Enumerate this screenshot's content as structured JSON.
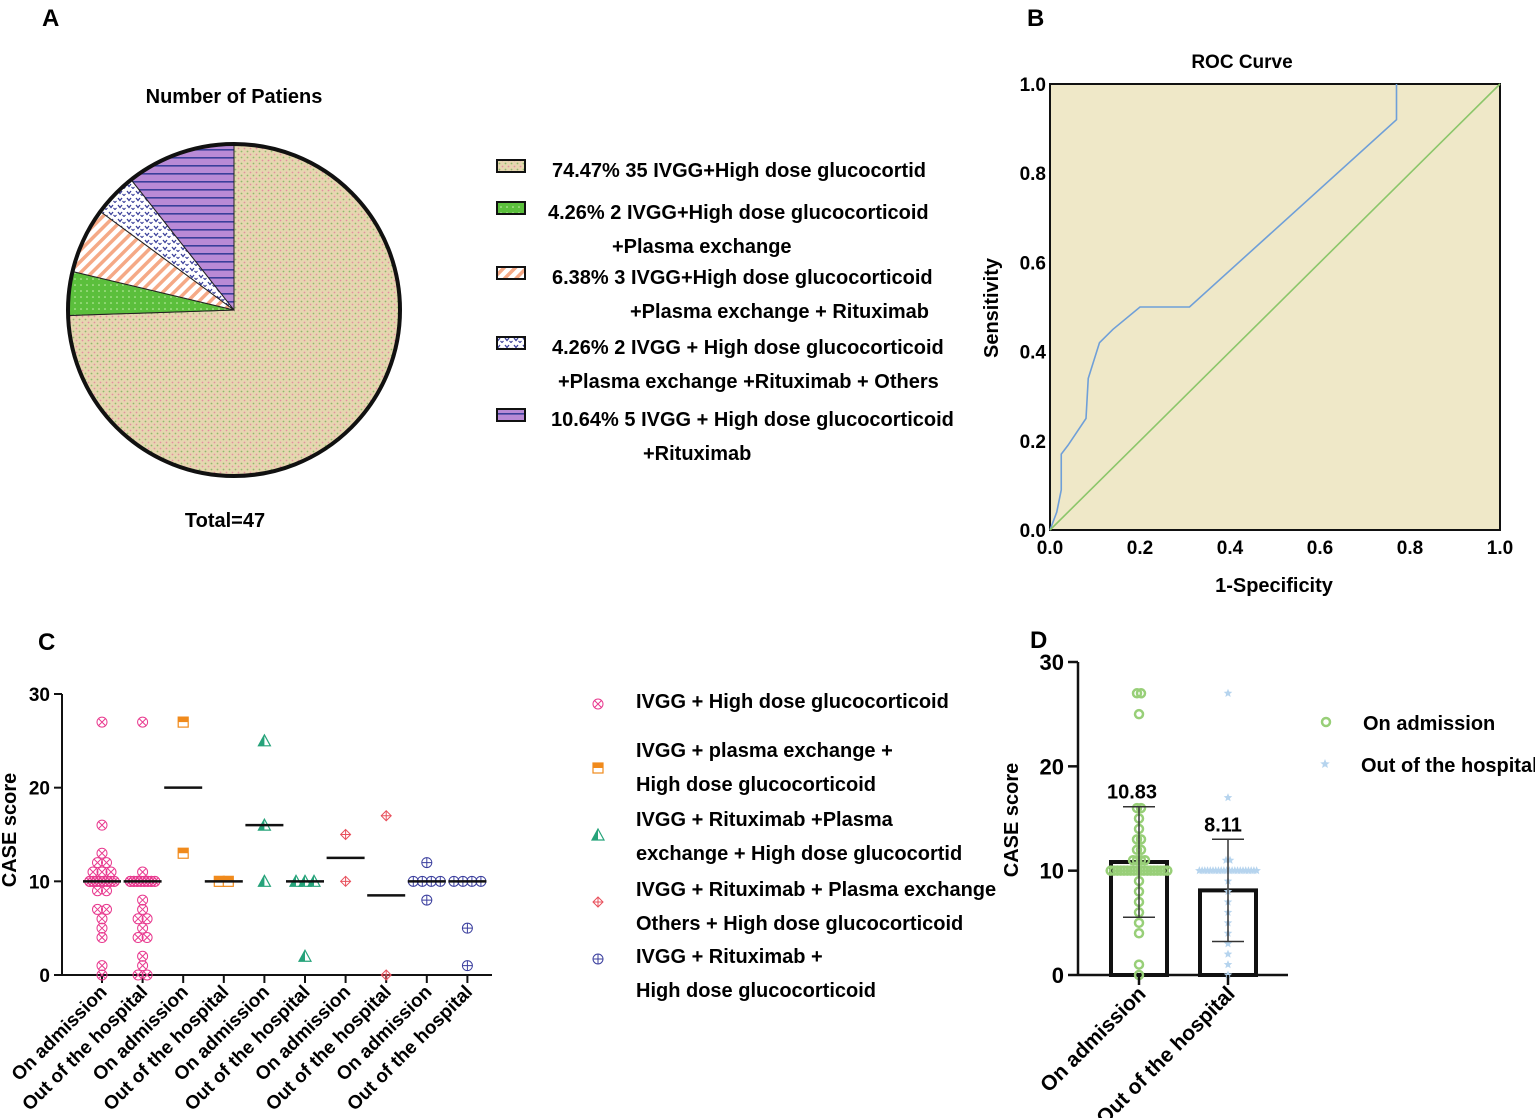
{
  "panel_labels": {
    "a": "A",
    "b": "B",
    "c": "C",
    "d": "D"
  },
  "colors": {
    "pie_base": "#e6d6b0",
    "pie_green": "#5bbf3c",
    "pie_salmon": "#f5a986",
    "pie_navy": "#3a3f9a",
    "pie_purple": "#b98ad6",
    "roc_bg": "#efe8c8",
    "roc_curve": "#6f9fd8",
    "roc_diag": "#8cc66a",
    "c_pink": "#e83a8f",
    "c_orange": "#f08a1c",
    "c_teal": "#26a37a",
    "c_red": "#e8505c",
    "c_navy": "#3b3f9e",
    "d_green": "#98cf78",
    "d_blue": "#b6d4ee"
  },
  "chart_data": [
    {
      "id": "A",
      "type": "pie",
      "title": "Number of Patiens",
      "footer": "Total=47",
      "slices": [
        {
          "percent": 74.47,
          "count": 35,
          "pattern": "dots",
          "color_key": "pie_base",
          "legend_lines": [
            "74.47% 35 IVGG+High dose glucocortid"
          ]
        },
        {
          "percent": 4.26,
          "count": 2,
          "pattern": "green",
          "color_key": "pie_green",
          "legend_lines": [
            "4.26% 2 IVGG+High dose glucocorticoid",
            "+Plasma exchange"
          ]
        },
        {
          "percent": 6.38,
          "count": 3,
          "pattern": "diag",
          "color_key": "pie_salmon",
          "legend_lines": [
            "6.38% 3 IVGG+High dose glucocorticoid",
            "+Plasma exchange + Rituximab"
          ]
        },
        {
          "percent": 4.26,
          "count": 2,
          "pattern": "chevron",
          "color_key": "pie_navy",
          "legend_lines": [
            "4.26% 2 IVGG + High dose glucocorticoid",
            "+Plasma exchange +Rituximab + Others"
          ]
        },
        {
          "percent": 10.64,
          "count": 5,
          "pattern": "hlines",
          "color_key": "pie_purple",
          "legend_lines": [
            "10.64% 5 IVGG + High dose glucocorticoid",
            "+Rituximab"
          ]
        }
      ]
    },
    {
      "id": "B",
      "type": "line",
      "title": "ROC Curve",
      "xlabel": "1-Specificity",
      "ylabel": "Sensitivity",
      "xlim": [
        0,
        1
      ],
      "ylim": [
        0,
        1
      ],
      "xticks": [
        "0.0",
        "0.2",
        "0.4",
        "0.6",
        "0.8",
        "1.0"
      ],
      "yticks": [
        "0.0",
        "0.2",
        "0.4",
        "0.6",
        "0.8",
        "1.0"
      ],
      "series": [
        {
          "name": "ROC",
          "color_key": "roc_curve",
          "x": [
            0,
            0.015,
            0.025,
            0.025,
            0.04,
            0.08,
            0.085,
            0.11,
            0.14,
            0.2,
            0.31,
            0.77,
            0.77
          ],
          "y": [
            0,
            0.04,
            0.09,
            0.17,
            0.19,
            0.25,
            0.34,
            0.42,
            0.45,
            0.5,
            0.5,
            0.92,
            1.0
          ]
        },
        {
          "name": "Reference",
          "color_key": "roc_diag",
          "x": [
            0,
            1
          ],
          "y": [
            0,
            1
          ]
        }
      ]
    },
    {
      "id": "C",
      "type": "scatter",
      "ylabel": "CASE score",
      "ylim": [
        0,
        30
      ],
      "yticks": [
        "0",
        "10",
        "20",
        "30"
      ],
      "categories": [
        "On admission",
        "Out of the hospital",
        "On admission",
        "Out of the hospital",
        "On admission",
        "Out of the hospital",
        "On admission",
        "Out of the hospital",
        "On admission",
        "Out of the hospital"
      ],
      "groups": [
        {
          "name": "IVGG + High dose glucocorticoid",
          "legend_lines": [
            "IVGG + High dose glucocorticoid"
          ],
          "marker": "circle-x",
          "color_key": "c_pink",
          "admission": [
            27,
            16,
            13,
            12,
            12,
            11,
            11,
            11,
            10,
            10,
            10,
            10,
            10,
            10,
            10,
            10,
            10,
            10,
            10,
            10,
            10,
            10,
            10,
            10,
            10,
            10,
            10,
            10,
            10,
            9,
            9,
            7,
            7,
            6,
            5,
            4,
            1,
            0
          ],
          "discharge": [
            27,
            11,
            10,
            10,
            10,
            10,
            10,
            10,
            10,
            10,
            10,
            10,
            10,
            10,
            10,
            10,
            10,
            10,
            10,
            10,
            10,
            10,
            10,
            10,
            10,
            8,
            7,
            6,
            6,
            5,
            4,
            4,
            2,
            1,
            0,
            0
          ],
          "mean_adm": 10,
          "mean_dis": 10
        },
        {
          "name": "IVGG + plasma exchange + High dose glucocorticoid",
          "legend_lines": [
            "IVGG + plasma exchange +",
            "High dose glucocorticoid"
          ],
          "marker": "half-square",
          "color_key": "c_orange",
          "admission": [
            27,
            13
          ],
          "discharge": [
            10,
            10
          ],
          "mean_adm": 20,
          "mean_dis": 10
        },
        {
          "name": "IVGG + Rituximab +Plasma exchange + High dose glucocortid",
          "legend_lines": [
            "IVGG + Rituximab +Plasma",
            "exchange + High dose glucocortid"
          ],
          "marker": "half-triangle",
          "color_key": "c_teal",
          "admission": [
            25,
            16,
            10
          ],
          "discharge": [
            10,
            10,
            10,
            2
          ],
          "mean_adm": 16,
          "mean_dis": 10
        },
        {
          "name": "IVGG + Rituximab + Plasma exchange Others + High dose glucocorticoid",
          "legend_lines": [
            "IVGG + Rituximab + Plasma exchange",
            "Others + High dose glucocorticoid"
          ],
          "marker": "diamond-plus",
          "color_key": "c_red",
          "admission": [
            15,
            10
          ],
          "discharge": [
            17,
            0
          ],
          "mean_adm": 12.5,
          "mean_dis": 8.5
        },
        {
          "name": "IVGG + Rituximab + High dose glucocorticoid",
          "legend_lines": [
            "IVGG + Rituximab +",
            "High dose glucocorticoid"
          ],
          "marker": "circle-plus",
          "color_key": "c_navy",
          "admission": [
            12,
            10,
            10,
            10,
            10,
            8
          ],
          "discharge": [
            10,
            10,
            10,
            10,
            5,
            1
          ],
          "mean_adm": 10,
          "mean_dis": 10
        }
      ]
    },
    {
      "id": "D",
      "type": "bar",
      "ylabel": "CASE score",
      "ylim": [
        0,
        30
      ],
      "yticks": [
        "0",
        "10",
        "20",
        "30"
      ],
      "categories": [
        "On admission",
        "Out of the hospital"
      ],
      "values": [
        10.83,
        8.11
      ],
      "value_labels": [
        "10.83",
        "8.11"
      ],
      "sd": [
        5.3,
        4.9
      ],
      "legend": [
        "On admission",
        "Out of the hospital"
      ],
      "points_admission": [
        27,
        27,
        25,
        16,
        16,
        15,
        14,
        13,
        13,
        12,
        12,
        11,
        11,
        11,
        11,
        10,
        10,
        10,
        10,
        10,
        10,
        10,
        10,
        10,
        10,
        10,
        10,
        10,
        10,
        10,
        10,
        10,
        10,
        9,
        8,
        7,
        6,
        5,
        4,
        1,
        0
      ],
      "points_discharge": [
        27,
        17,
        11,
        11,
        10,
        10,
        10,
        10,
        10,
        10,
        10,
        10,
        10,
        10,
        10,
        10,
        10,
        10,
        10,
        10,
        10,
        10,
        10,
        10,
        10,
        10,
        9,
        8,
        7,
        6,
        5,
        4,
        3,
        2,
        1,
        0
      ]
    }
  ]
}
